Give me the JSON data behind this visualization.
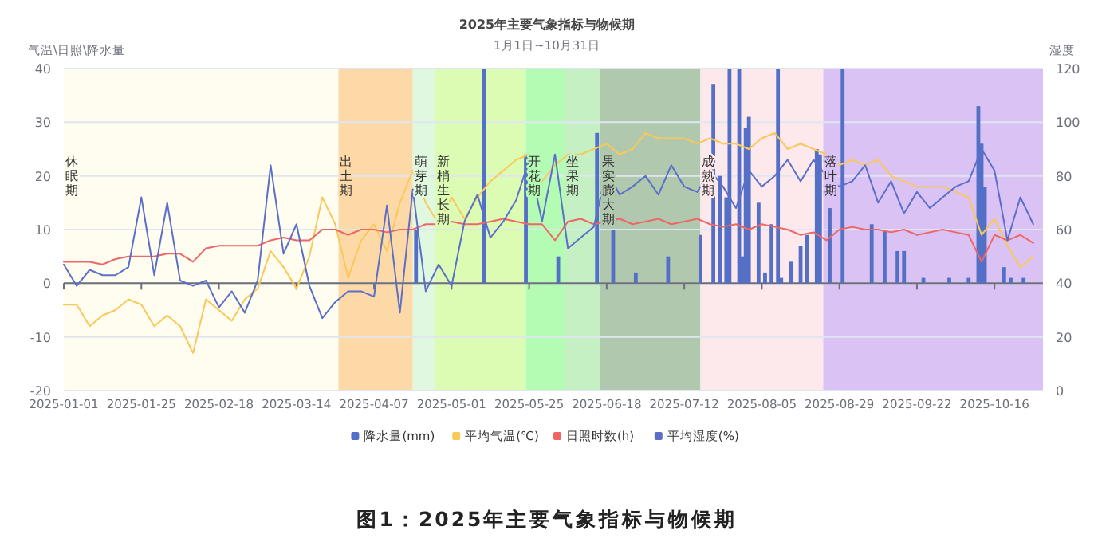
{
  "chart_data": {
    "type": "line",
    "title": "2025年主要气象指标与物候期",
    "subtitle": "1月1日~10月31日",
    "ylabel": "气温\\日照\\降水量",
    "y2label": "湿度",
    "annotations": [
      "图1：2025年主要气象指标与物候期"
    ],
    "x": [
      "2025-01-01",
      "2025-01-05",
      "2025-01-09",
      "2025-01-13",
      "2025-01-17",
      "2025-01-21",
      "2025-01-25",
      "2025-01-29",
      "2025-02-02",
      "2025-02-06",
      "2025-02-10",
      "2025-02-14",
      "2025-02-18",
      "2025-02-22",
      "2025-02-26",
      "2025-03-02",
      "2025-03-06",
      "2025-03-10",
      "2025-03-14",
      "2025-03-18",
      "2025-03-22",
      "2025-03-26",
      "2025-03-30",
      "2025-04-03",
      "2025-04-07",
      "2025-04-11",
      "2025-04-15",
      "2025-04-19",
      "2025-04-23",
      "2025-04-27",
      "2025-05-01",
      "2025-05-05",
      "2025-05-09",
      "2025-05-13",
      "2025-05-17",
      "2025-05-21",
      "2025-05-25",
      "2025-05-29",
      "2025-06-02",
      "2025-06-06",
      "2025-06-10",
      "2025-06-14",
      "2025-06-18",
      "2025-06-22",
      "2025-06-26",
      "2025-06-30",
      "2025-07-04",
      "2025-07-08",
      "2025-07-12",
      "2025-07-16",
      "2025-07-20",
      "2025-07-24",
      "2025-07-28",
      "2025-08-01",
      "2025-08-05",
      "2025-08-09",
      "2025-08-13",
      "2025-08-17",
      "2025-08-21",
      "2025-08-25",
      "2025-08-29",
      "2025-09-02",
      "2025-09-06",
      "2025-09-10",
      "2025-09-14",
      "2025-09-18",
      "2025-09-22",
      "2025-09-26",
      "2025-09-30",
      "2025-10-04",
      "2025-10-08",
      "2025-10-12",
      "2025-10-16",
      "2025-10-20",
      "2025-10-24",
      "2025-10-28"
    ],
    "series": [
      {
        "name": "降水量(mm)",
        "type": "bar",
        "color": "#5470c6",
        "x": [
          "2025-04-20",
          "2025-05-11",
          "2025-05-24",
          "2025-06-03",
          "2025-06-15",
          "2025-06-20",
          "2025-06-27",
          "2025-07-07",
          "2025-07-17",
          "2025-07-21",
          "2025-07-23",
          "2025-07-25",
          "2025-07-26",
          "2025-07-29",
          "2025-07-30",
          "2025-07-31",
          "2025-08-01",
          "2025-08-04",
          "2025-08-06",
          "2025-08-08",
          "2025-08-10",
          "2025-08-11",
          "2025-08-14",
          "2025-08-17",
          "2025-08-19",
          "2025-08-22",
          "2025-08-23",
          "2025-08-26",
          "2025-08-30",
          "2025-09-08",
          "2025-09-12",
          "2025-09-16",
          "2025-09-18",
          "2025-09-24",
          "2025-10-02",
          "2025-10-08",
          "2025-10-11",
          "2025-10-12",
          "2025-10-13",
          "2025-10-19",
          "2025-10-21",
          "2025-10-25"
        ],
        "values": [
          10,
          40,
          24,
          5,
          28,
          10,
          2,
          5,
          9,
          37,
          20,
          16,
          40,
          40,
          5,
          29,
          31,
          15,
          2,
          11,
          40,
          1,
          4,
          7,
          9,
          25,
          24,
          14,
          40,
          11,
          10,
          6,
          6,
          1,
          1,
          1,
          33,
          26,
          18,
          3,
          1,
          1
        ]
      },
      {
        "name": "平均气温(℃)",
        "color": "#fac858",
        "values": [
          -4,
          -4,
          -8,
          -6,
          -5,
          -3,
          -4,
          -8,
          -6,
          -8,
          -13,
          -3,
          -5,
          -7,
          -3,
          -1,
          6,
          3,
          -1,
          5,
          16,
          11,
          1,
          8,
          11,
          6,
          15,
          21,
          15,
          11,
          16,
          12,
          16,
          19,
          21,
          23,
          24,
          19,
          22,
          24,
          24,
          25,
          26,
          24,
          25,
          28,
          27,
          27,
          27,
          26,
          27,
          26,
          26,
          25,
          27,
          28,
          25,
          26,
          25,
          24,
          22,
          23,
          22,
          23,
          20,
          19,
          18,
          18,
          18,
          17,
          16,
          9,
          12,
          7,
          3,
          5
        ]
      },
      {
        "name": "日照时数(h)",
        "color": "#ee6666",
        "values": [
          4,
          4,
          4,
          3.5,
          4.5,
          5,
          5,
          5,
          5.5,
          5.5,
          4,
          6.5,
          7,
          7,
          7,
          7,
          8,
          8.5,
          8,
          8,
          10,
          10,
          9,
          10,
          10,
          9.5,
          10,
          10,
          11,
          11,
          11.5,
          11,
          11,
          11.5,
          12,
          11.5,
          11,
          11,
          8,
          11.5,
          12,
          11,
          11.5,
          12,
          11,
          11.5,
          12,
          11,
          11.5,
          12,
          11,
          10.5,
          11,
          10,
          11,
          10.5,
          10,
          9,
          9.5,
          8,
          10,
          10.5,
          10,
          10,
          9.5,
          10,
          9,
          9.5,
          10,
          9.5,
          9,
          4,
          9,
          8,
          9,
          7.5
        ]
      },
      {
        "name": "平均湿度(%)",
        "axis": "y2",
        "color": "#5b6fc8",
        "values": [
          47,
          39,
          45,
          43,
          43,
          46,
          72,
          43,
          70,
          41,
          39,
          41,
          31,
          37,
          29,
          41,
          84,
          51,
          62,
          39,
          27,
          33,
          37,
          37,
          35,
          69,
          29,
          75,
          37,
          47,
          39,
          63,
          73,
          57,
          63,
          71,
          86,
          63,
          88,
          53,
          57,
          61,
          82,
          73,
          76,
          80,
          73,
          84,
          76,
          74,
          82,
          76,
          68,
          82,
          76,
          80,
          86,
          78,
          86,
          80,
          76,
          78,
          84,
          70,
          78,
          66,
          74,
          68,
          72,
          76,
          78,
          90,
          82,
          56,
          72,
          62
        ]
      }
    ],
    "xlim": [
      "2025-01-01",
      "2025-10-31"
    ],
    "xticks": [
      "2025-01-01",
      "2025-01-25",
      "2025-02-18",
      "2025-03-14",
      "2025-04-07",
      "2025-05-01",
      "2025-05-25",
      "2025-06-18",
      "2025-07-12",
      "2025-08-05",
      "2025-08-29",
      "2025-09-22",
      "2025-10-16"
    ],
    "ylim": [
      -20,
      40
    ],
    "yticks": [
      -20,
      -10,
      0,
      10,
      20,
      30,
      40
    ],
    "y2lim": [
      0,
      120
    ],
    "y2ticks": [
      0,
      20,
      40,
      60,
      80,
      100,
      120
    ],
    "grid": "y",
    "legend": "bottom",
    "bands": [
      {
        "axis": "x",
        "from": "2025-01-01",
        "to": "2025-03-27",
        "label": "休眠期",
        "color": "#fffdf0"
      },
      {
        "axis": "x",
        "from": "2025-03-27",
        "to": "2025-04-19",
        "label": "出土期",
        "color": "#fdd9a8"
      },
      {
        "axis": "x",
        "from": "2025-04-19",
        "to": "2025-04-26",
        "label": "萌芽期",
        "color": "#e0f8e0"
      },
      {
        "axis": "x",
        "from": "2025-04-26",
        "to": "2025-05-24",
        "label": "新梢生长期",
        "color": "#dcfcb4"
      },
      {
        "axis": "x",
        "from": "2025-05-24",
        "to": "2025-06-05",
        "label": "开花期",
        "color": "#b4fcb4"
      },
      {
        "axis": "x",
        "from": "2025-06-05",
        "to": "2025-06-16",
        "label": "坐果期",
        "color": "#c4f0c4"
      },
      {
        "axis": "x",
        "from": "2025-06-16",
        "to": "2025-07-17",
        "label": "果实膨大期",
        "color": "#b0c9ae"
      },
      {
        "axis": "x",
        "from": "2025-07-17",
        "to": "2025-08-24",
        "label": "成熟期",
        "color": "#fde8ec"
      },
      {
        "axis": "x",
        "from": "2025-08-24",
        "to": "2025-10-31",
        "label": "落叶期",
        "color": "#dac2f5"
      }
    ]
  }
}
